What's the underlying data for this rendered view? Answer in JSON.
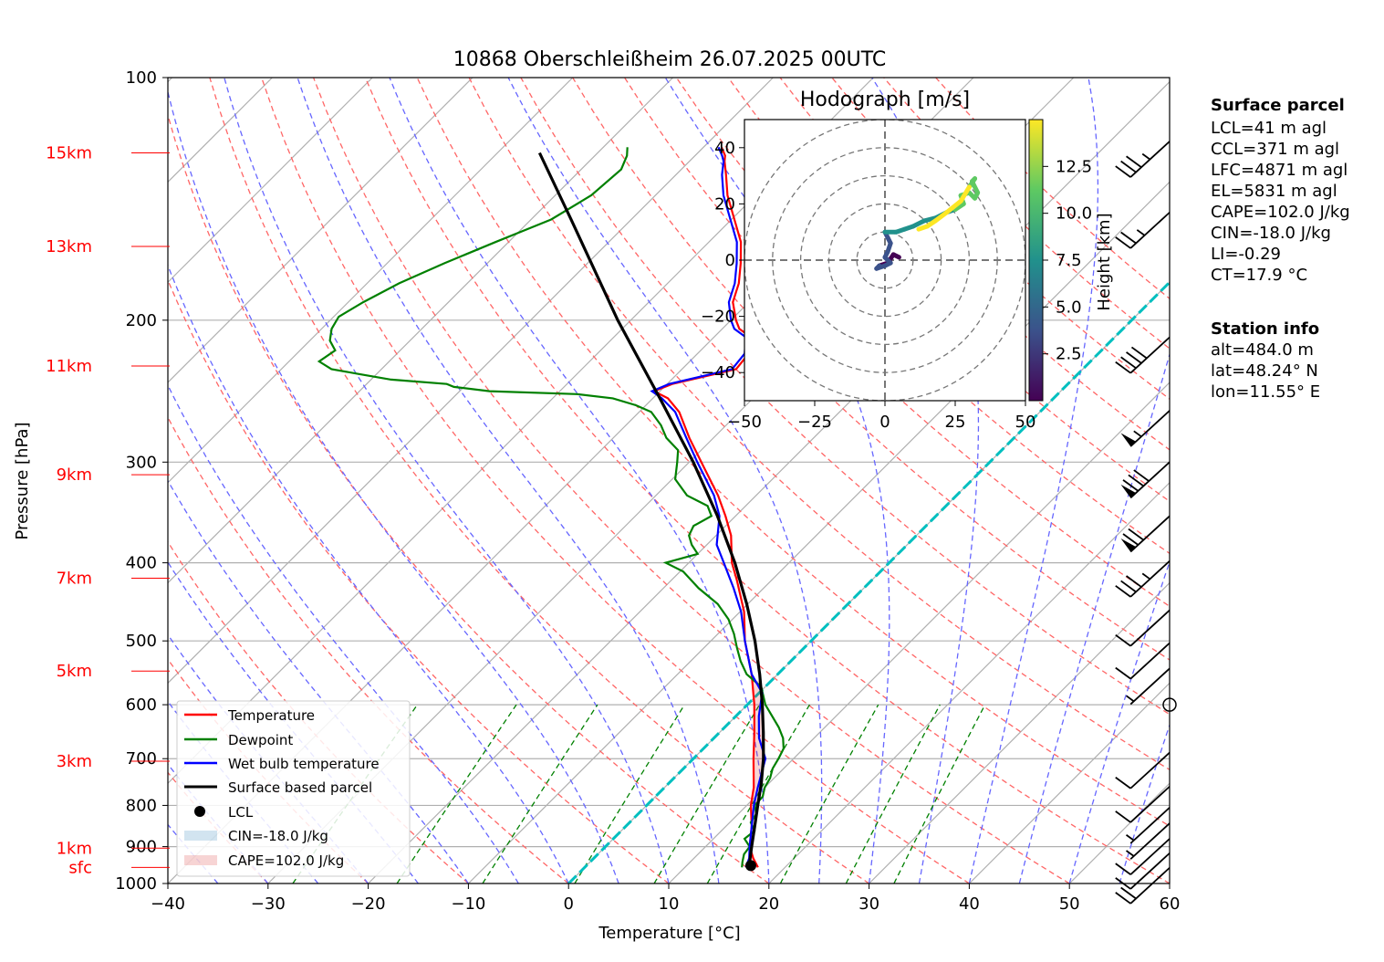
{
  "chart_data": {
    "type": "line",
    "title": "10868 Oberschleißheim 26.07.2025 00UTC",
    "xlabel": "Temperature [°C]",
    "ylabel": "Pressure [hPa]",
    "xlim": [
      -40,
      60
    ],
    "ylim": [
      1000,
      100
    ],
    "y_scale": "log",
    "skew": "45deg",
    "x_ticks": [
      "−40",
      "−30",
      "−20",
      "−10",
      "0",
      "10",
      "20",
      "30",
      "40",
      "50",
      "60"
    ],
    "x_tick_values": [
      -40,
      -30,
      -20,
      -10,
      0,
      10,
      20,
      30,
      40,
      50,
      60
    ],
    "y_ticks": [
      "1000",
      "900",
      "800",
      "700",
      "600",
      "500",
      "400",
      "300",
      "200",
      "100"
    ],
    "y_tick_values": [
      1000,
      900,
      800,
      700,
      600,
      500,
      400,
      300,
      200,
      100
    ],
    "height_labels": [
      {
        "label": "sfc",
        "p": 955
      },
      {
        "label": "1km",
        "p": 904
      },
      {
        "label": "3km",
        "p": 705
      },
      {
        "label": "5km",
        "p": 545
      },
      {
        "label": "7km",
        "p": 418
      },
      {
        "label": "9km",
        "p": 311
      },
      {
        "label": "11km",
        "p": 228
      },
      {
        "label": "13km",
        "p": 162
      },
      {
        "label": "15km",
        "p": 124
      }
    ],
    "series": [
      {
        "name": "Temperature",
        "color": "#ff0000",
        "points": [
          [
            955,
            17.3
          ],
          [
            930,
            15.9
          ],
          [
            900,
            14.4
          ],
          [
            850,
            12.6
          ],
          [
            800,
            10.4
          ],
          [
            760,
            8.9
          ],
          [
            700,
            6.0
          ],
          [
            650,
            3.5
          ],
          [
            600,
            0.7
          ],
          [
            550,
            -2.6
          ],
          [
            500,
            -6.6
          ],
          [
            460,
            -9.6
          ],
          [
            420,
            -13.5
          ],
          [
            400,
            -15.7
          ],
          [
            370,
            -18.5
          ],
          [
            350,
            -21.0
          ],
          [
            330,
            -23.8
          ],
          [
            300,
            -28.8
          ],
          [
            280,
            -32.4
          ],
          [
            260,
            -36.0
          ],
          [
            250,
            -38.5
          ],
          [
            245,
            -40.6
          ],
          [
            240,
            -39.5
          ],
          [
            230,
            -34.6
          ],
          [
            220,
            -34.9
          ],
          [
            210,
            -36.3
          ],
          [
            205,
            -38.3
          ],
          [
            200,
            -39.5
          ],
          [
            190,
            -41.6
          ],
          [
            180,
            -42.9
          ],
          [
            170,
            -44.7
          ],
          [
            160,
            -46.8
          ],
          [
            150,
            -49.7
          ],
          [
            140,
            -52.8
          ],
          [
            132,
            -55.0
          ],
          [
            127,
            -56.5
          ],
          [
            125,
            -57.0
          ],
          [
            122,
            -58.2
          ]
        ]
      },
      {
        "name": "Dewpoint",
        "color": "#008000",
        "points": [
          [
            955,
            15.7
          ],
          [
            940,
            15.2
          ],
          [
            920,
            14.6
          ],
          [
            900,
            14.4
          ],
          [
            880,
            13.1
          ],
          [
            860,
            13.3
          ],
          [
            840,
            12.1
          ],
          [
            820,
            11.8
          ],
          [
            800,
            10.8
          ],
          [
            780,
            10.7
          ],
          [
            760,
            10.0
          ],
          [
            740,
            9.6
          ],
          [
            720,
            8.9
          ],
          [
            700,
            8.5
          ],
          [
            680,
            8.0
          ],
          [
            660,
            6.9
          ],
          [
            640,
            5.4
          ],
          [
            600,
            1.8
          ],
          [
            570,
            -0.4
          ],
          [
            550,
            -3.1
          ],
          [
            530,
            -5.0
          ],
          [
            510,
            -6.7
          ],
          [
            490,
            -8.4
          ],
          [
            470,
            -10.4
          ],
          [
            450,
            -13.0
          ],
          [
            430,
            -16.5
          ],
          [
            410,
            -19.7
          ],
          [
            400,
            -22.3
          ],
          [
            390,
            -20.0
          ],
          [
            380,
            -21.5
          ],
          [
            370,
            -22.7
          ],
          [
            360,
            -23.2
          ],
          [
            350,
            -22.4
          ],
          [
            340,
            -23.8
          ],
          [
            330,
            -26.9
          ],
          [
            315,
            -29.7
          ],
          [
            300,
            -31.2
          ],
          [
            290,
            -32.3
          ],
          [
            280,
            -34.7
          ],
          [
            270,
            -36.5
          ],
          [
            260,
            -38.8
          ],
          [
            255,
            -41.0
          ],
          [
            250,
            -44.0
          ],
          [
            247,
            -48.0
          ],
          [
            245,
            -57.0
          ],
          [
            242,
            -61.0
          ],
          [
            240,
            -62.0
          ],
          [
            237,
            -68.0
          ],
          [
            233,
            -72.0
          ],
          [
            230,
            -75.0
          ],
          [
            225,
            -77.0
          ],
          [
            218,
            -76.5
          ],
          [
            212,
            -78.0
          ],
          [
            205,
            -79.0
          ],
          [
            198,
            -79.5
          ],
          [
            190,
            -78.5
          ],
          [
            180,
            -76.8
          ],
          [
            170,
            -74.3
          ],
          [
            160,
            -71.3
          ],
          [
            150,
            -68.0
          ],
          [
            140,
            -66.4
          ],
          [
            130,
            -66.0
          ],
          [
            125,
            -66.8
          ],
          [
            122,
            -67.6
          ]
        ]
      },
      {
        "name": "Wet bulb temperature",
        "color": "#0000ff",
        "points": [
          [
            955,
            16.1
          ],
          [
            930,
            15.5
          ],
          [
            900,
            14.4
          ],
          [
            850,
            12.6
          ],
          [
            800,
            10.7
          ],
          [
            760,
            9.3
          ],
          [
            700,
            7.2
          ],
          [
            660,
            4.5
          ],
          [
            620,
            2.3
          ],
          [
            580,
            0.3
          ],
          [
            550,
            -2.6
          ],
          [
            500,
            -6.6
          ],
          [
            460,
            -9.9
          ],
          [
            430,
            -13.0
          ],
          [
            400,
            -16.5
          ],
          [
            380,
            -19.0
          ],
          [
            350,
            -21.6
          ],
          [
            330,
            -24.2
          ],
          [
            300,
            -29.2
          ],
          [
            280,
            -32.7
          ],
          [
            260,
            -36.4
          ],
          [
            250,
            -39.1
          ],
          [
            245,
            -40.8
          ],
          [
            240,
            -39.8
          ],
          [
            230,
            -35.0
          ],
          [
            220,
            -35.3
          ],
          [
            210,
            -36.8
          ],
          [
            205,
            -38.8
          ],
          [
            200,
            -40.0
          ],
          [
            190,
            -42.0
          ],
          [
            180,
            -43.3
          ],
          [
            170,
            -45.1
          ],
          [
            160,
            -47.2
          ],
          [
            150,
            -50.1
          ],
          [
            140,
            -53.2
          ],
          [
            132,
            -55.4
          ],
          [
            127,
            -56.6
          ],
          [
            125,
            -57.3
          ],
          [
            122,
            -58.5
          ]
        ]
      },
      {
        "name": "Surface based parcel",
        "color": "#000000",
        "points": [
          [
            955,
            16.4
          ],
          [
            900,
            14.6
          ],
          [
            850,
            12.9
          ],
          [
            800,
            11.1
          ],
          [
            750,
            9.2
          ],
          [
            700,
            7.0
          ],
          [
            650,
            4.4
          ],
          [
            600,
            1.5
          ],
          [
            550,
            -1.8
          ],
          [
            500,
            -5.6
          ],
          [
            450,
            -10.1
          ],
          [
            400,
            -15.4
          ],
          [
            350,
            -21.8
          ],
          [
            300,
            -29.6
          ],
          [
            250,
            -39.3
          ],
          [
            200,
            -51.3
          ],
          [
            150,
            -66.0
          ],
          [
            124,
            -75.8
          ]
        ]
      }
    ],
    "lcl": {
      "name": "LCL",
      "p": 950,
      "t": 16.4
    },
    "legend": {
      "placement": "lower-left",
      "entries": [
        "Temperature",
        "Dewpoint",
        "Wet bulb temperature",
        "Surface based parcel",
        "LCL",
        "CIN=-18.0 J/kg",
        "CAPE=102.0 J/kg"
      ]
    },
    "cape_label": "CAPE=102.0 J/kg",
    "cin_label": "CIN=-18.0 J/kg",
    "zero_isotherm_color": "#00bfbf",
    "dry_adiabat_color": "#ff6666",
    "moist_adiabat_color": "#6666ff",
    "mixing_ratio_color": "#008000",
    "wind_barbs": [
      {
        "p": 956,
        "speed_kt": 20
      },
      {
        "p": 917,
        "speed_kt": 10
      },
      {
        "p": 880,
        "speed_kt": 10
      },
      {
        "p": 842,
        "speed_kt": 5
      },
      {
        "p": 805,
        "speed_kt": 5
      },
      {
        "p": 758,
        "speed_kt": 10
      },
      {
        "p": 688,
        "speed_kt": 10
      },
      {
        "p": 600,
        "speed_kt": 0
      },
      {
        "p": 541,
        "speed_kt": 5
      },
      {
        "p": 503,
        "speed_kt": 10
      },
      {
        "p": 458,
        "speed_kt": 10
      },
      {
        "p": 398,
        "speed_kt": 35
      },
      {
        "p": 350,
        "speed_kt": 70
      },
      {
        "p": 300,
        "speed_kt": 80
      },
      {
        "p": 259,
        "speed_kt": 55
      },
      {
        "p": 210,
        "speed_kt": 40
      },
      {
        "p": 147,
        "speed_kt": 25
      },
      {
        "p": 120,
        "speed_kt": 35
      }
    ],
    "hodograph": {
      "title": "Hodograph [m/s]",
      "xlim": [
        -50,
        50
      ],
      "ylim": [
        -50,
        50
      ],
      "x_ticks": [
        "−50",
        "−25",
        "0",
        "25",
        "50"
      ],
      "x_tick_values": [
        -50,
        -25,
        0,
        25,
        50
      ],
      "y_ticks": [
        "40",
        "20",
        "0",
        "−20",
        "−40"
      ],
      "y_tick_values": [
        40,
        20,
        0,
        -20,
        -40
      ],
      "rings": [
        10,
        20,
        30,
        40,
        50
      ],
      "colorbar": {
        "label": "Height [km]",
        "ticks": [
          "2.5",
          "5.0",
          "7.5",
          "10.0",
          "12.5"
        ],
        "tick_values": [
          2.5,
          5.0,
          7.5,
          10.0,
          12.5
        ],
        "range": [
          0,
          15
        ]
      },
      "path": [
        [
          5,
          1,
          0.5
        ],
        [
          3,
          2,
          1
        ],
        [
          1,
          -1,
          1.5
        ],
        [
          -2,
          -2,
          2
        ],
        [
          -3,
          -3,
          2.5
        ],
        [
          0,
          -2,
          3
        ],
        [
          2,
          -1,
          3.5
        ],
        [
          0,
          1,
          4
        ],
        [
          1,
          3,
          4.5
        ],
        [
          2,
          6,
          5
        ],
        [
          1,
          8,
          5.5
        ],
        [
          0,
          10,
          6
        ],
        [
          4,
          10,
          6.5
        ],
        [
          7,
          11,
          7
        ],
        [
          10,
          12,
          7.5
        ],
        [
          14,
          14,
          8
        ],
        [
          18,
          15,
          8.5
        ],
        [
          22,
          17,
          9
        ],
        [
          25,
          18,
          9.5
        ],
        [
          28,
          20,
          10
        ],
        [
          27,
          23,
          10.5
        ],
        [
          30,
          24,
          11
        ],
        [
          32,
          22,
          11.5
        ],
        [
          33,
          24,
          12
        ],
        [
          31,
          28,
          12.5
        ],
        [
          32,
          29,
          13
        ],
        [
          30,
          26,
          13.5
        ],
        [
          27,
          21,
          14
        ],
        [
          22,
          17,
          14.3
        ],
        [
          18,
          14,
          14.5
        ],
        [
          15,
          12,
          14.7
        ],
        [
          12,
          11,
          15
        ]
      ]
    }
  },
  "info": {
    "surface_title": "Surface parcel",
    "surface_lines": [
      "LCL=41 m agl",
      "CCL=371 m agl",
      "LFC=4871 m agl",
      "EL=5831 m agl",
      "CAPE=102.0 J/kg",
      "CIN=-18.0 J/kg",
      "LI=-0.29",
      "CT=17.9 °C"
    ],
    "station_title": "Station info",
    "station_lines": [
      "alt=484.0 m",
      "lat=48.24° N",
      "lon=11.55° E"
    ]
  }
}
